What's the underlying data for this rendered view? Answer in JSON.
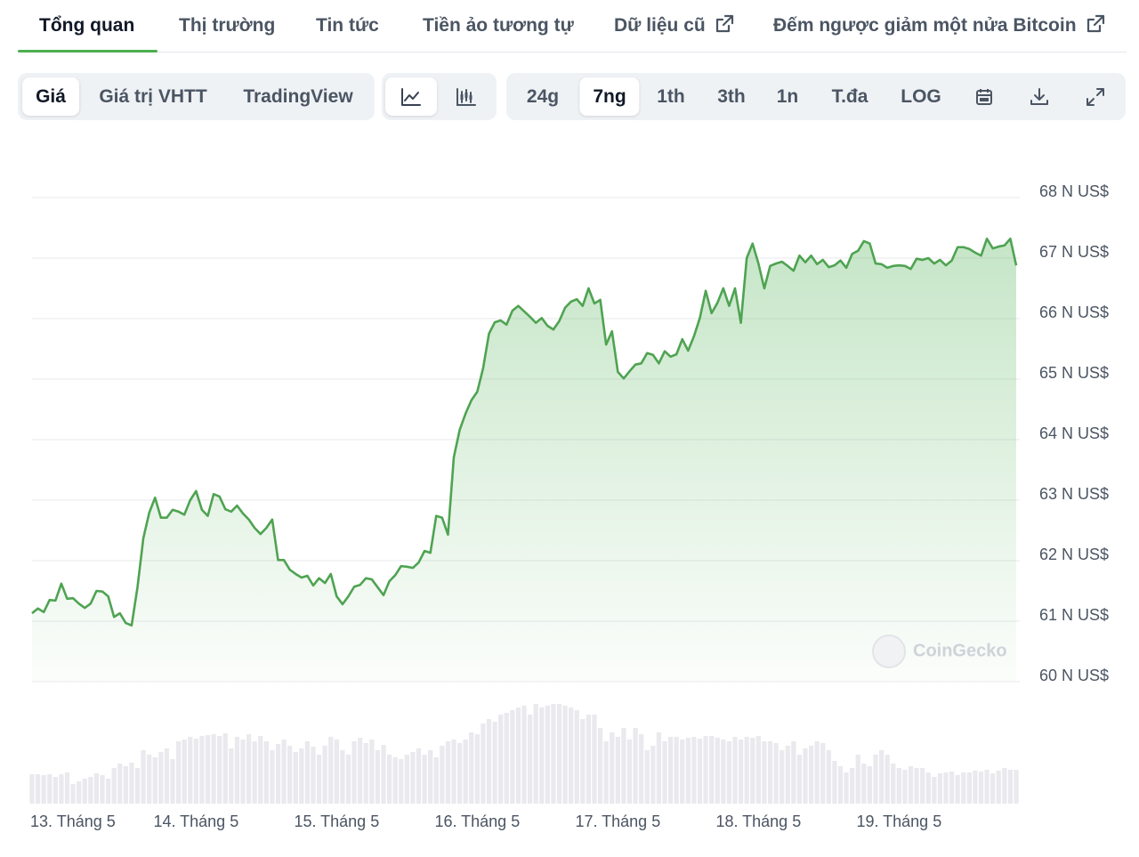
{
  "tabs": [
    "Tổng quan",
    "Thị trường",
    "Tin tức",
    "Tiền ảo tương tự",
    "Dữ liệu cũ",
    "Đếm ngược giảm một nửa Bitcoin"
  ],
  "active_tab": 0,
  "view_buttons": [
    "Giá",
    "Giá trị VHTT",
    "TradingView"
  ],
  "active_view": 0,
  "range_buttons": [
    "24g",
    "7ng",
    "1th",
    "3th",
    "1n",
    "T.đa",
    "LOG"
  ],
  "active_range": 1,
  "chart_data": {
    "type": "line",
    "color": "#4fa352",
    "area_fill": true,
    "grid": true,
    "watermark": "CoinGecko",
    "xlim": [
      0,
      168
    ],
    "ylim": [
      60,
      68
    ],
    "xticks": [
      {
        "value": 4,
        "label": "13. Tháng 5"
      },
      {
        "value": 28,
        "label": "14. Tháng 5"
      },
      {
        "value": 52,
        "label": "15. Tháng 5"
      },
      {
        "value": 76,
        "label": "16. Tháng 5"
      },
      {
        "value": 100,
        "label": "17. Tháng 5"
      },
      {
        "value": 124,
        "label": "18. Tháng 5"
      },
      {
        "value": 148,
        "label": "19. Tháng 5"
      }
    ],
    "yticks": [
      {
        "value": 60,
        "label": "60 N US$"
      },
      {
        "value": 61,
        "label": "61 N US$"
      },
      {
        "value": 62,
        "label": "62 N US$"
      },
      {
        "value": 63,
        "label": "63 N US$"
      },
      {
        "value": 64,
        "label": "64 N US$"
      },
      {
        "value": 65,
        "label": "65 N US$"
      },
      {
        "value": 66,
        "label": "66 N US$"
      },
      {
        "value": 67,
        "label": "67 N US$"
      },
      {
        "value": 68,
        "label": "68 N US$"
      }
    ],
    "x": [
      0,
      1,
      2,
      3,
      4,
      5,
      6,
      7,
      8,
      9,
      10,
      11,
      12,
      13,
      14,
      15,
      16,
      17,
      18,
      19,
      20,
      21,
      22,
      23,
      24,
      25,
      26,
      27,
      28,
      29,
      30,
      31,
      32,
      33,
      34,
      35,
      36,
      37,
      38,
      39,
      40,
      41,
      42,
      43,
      44,
      45,
      46,
      47,
      48,
      49,
      50,
      51,
      52,
      53,
      54,
      55,
      56,
      57,
      58,
      59,
      60,
      61,
      62,
      63,
      64,
      65,
      66,
      67,
      68,
      69,
      70,
      71,
      72,
      73,
      74,
      75,
      76,
      77,
      78,
      79,
      80,
      81,
      82,
      83,
      84,
      85,
      86,
      87,
      88,
      89,
      90,
      91,
      92,
      93,
      94,
      95,
      96,
      97,
      98,
      99,
      100,
      101,
      102,
      103,
      104,
      105,
      106,
      107,
      108,
      109,
      110,
      111,
      112,
      113,
      114,
      115,
      116,
      117,
      118,
      119,
      120,
      121,
      122,
      123,
      124,
      125,
      126,
      127,
      128,
      129,
      130,
      131,
      132,
      133,
      134,
      135,
      136,
      137,
      138,
      139,
      140,
      141,
      142,
      143,
      144,
      145,
      146,
      147,
      148,
      149,
      150,
      151,
      152,
      153,
      154,
      155,
      156,
      157,
      158,
      159,
      160,
      161,
      162,
      163,
      164,
      165,
      166,
      167,
      168
    ],
    "values": [
      61.13,
      61.21,
      61.15,
      61.35,
      61.34,
      61.62,
      61.37,
      61.38,
      61.29,
      61.22,
      61.29,
      61.5,
      61.49,
      61.41,
      61.07,
      61.13,
      60.97,
      60.93,
      61.56,
      62.37,
      62.79,
      63.04,
      62.71,
      62.71,
      62.84,
      62.81,
      62.76,
      63.0,
      63.15,
      62.84,
      62.74,
      63.1,
      63.06,
      62.85,
      62.81,
      62.91,
      62.78,
      62.68,
      62.54,
      62.44,
      62.54,
      62.68,
      62.01,
      62.01,
      61.85,
      61.78,
      61.72,
      61.75,
      61.59,
      61.71,
      61.63,
      61.78,
      61.41,
      61.28,
      61.41,
      61.57,
      61.6,
      61.71,
      61.69,
      61.56,
      61.43,
      61.66,
      61.76,
      61.91,
      61.9,
      61.88,
      61.97,
      62.16,
      62.13,
      62.74,
      62.71,
      62.43,
      63.71,
      64.16,
      64.43,
      64.65,
      64.79,
      65.18,
      65.75,
      65.94,
      65.97,
      65.9,
      66.13,
      66.21,
      66.12,
      66.03,
      65.93,
      66.01,
      65.88,
      65.82,
      65.96,
      66.18,
      66.28,
      66.32,
      66.21,
      66.5,
      66.25,
      66.31,
      65.57,
      65.79,
      65.12,
      65.01,
      65.13,
      65.24,
      65.26,
      65.43,
      65.4,
      65.26,
      65.46,
      65.37,
      65.41,
      65.66,
      65.47,
      65.71,
      66.01,
      66.46,
      66.09,
      66.26,
      66.5,
      66.21,
      66.5,
      65.93,
      67.0,
      67.24,
      66.91,
      66.5,
      66.87,
      66.91,
      66.94,
      66.87,
      66.79,
      67.04,
      66.93,
      67.04,
      66.9,
      66.97,
      66.85,
      66.88,
      66.96,
      66.84,
      67.07,
      67.12,
      67.28,
      67.24,
      66.91,
      66.9,
      66.84,
      66.87,
      66.88,
      66.87,
      66.82,
      66.99,
      66.97,
      67.0,
      66.91,
      66.97,
      66.88,
      66.96,
      67.18,
      67.18,
      67.15,
      67.09,
      67.04,
      67.32,
      67.16,
      67.19,
      67.21,
      67.32,
      66.88
    ],
    "volume": {
      "color": "#e9e9ee",
      "values": [
        33,
        33,
        32,
        33,
        30,
        33,
        35,
        22,
        25,
        28,
        30,
        34,
        32,
        28,
        40,
        45,
        42,
        46,
        40,
        60,
        55,
        52,
        58,
        62,
        50,
        70,
        72,
        75,
        73,
        76,
        77,
        78,
        76,
        79,
        62,
        75,
        72,
        78,
        70,
        76,
        70,
        60,
        67,
        72,
        65,
        58,
        62,
        70,
        64,
        55,
        65,
        75,
        72,
        60,
        55,
        70,
        74,
        68,
        72,
        60,
        66,
        55,
        52,
        50,
        55,
        58,
        62,
        55,
        60,
        52,
        65,
        70,
        72,
        68,
        72,
        80,
        78,
        90,
        95,
        92,
        100,
        102,
        105,
        108,
        110,
        100,
        112,
        108,
        110,
        112,
        112,
        110,
        108,
        105,
        95,
        100,
        100,
        85,
        70,
        80,
        75,
        85,
        72,
        85,
        78,
        60,
        65,
        80,
        70,
        75,
        75,
        72,
        74,
        75,
        73,
        76,
        76,
        74,
        72,
        70,
        75,
        72,
        75,
        74,
        76,
        70,
        70,
        68,
        60,
        65,
        70,
        55,
        62,
        65,
        70,
        68,
        60,
        48,
        42,
        35,
        40,
        55,
        45,
        42,
        55,
        60,
        55,
        45,
        40,
        38,
        42,
        40,
        40,
        35,
        30,
        34,
        35,
        36,
        32,
        35,
        35,
        37,
        36,
        38,
        34,
        37,
        40,
        38,
        38
      ]
    }
  }
}
